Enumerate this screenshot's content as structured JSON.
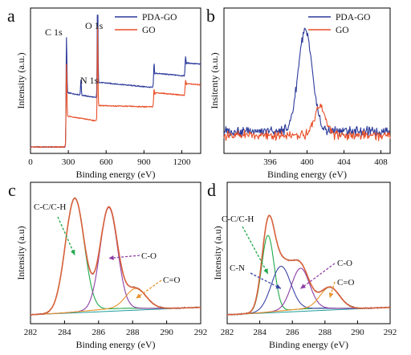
{
  "colors": {
    "pda_go": "#2b3a9a",
    "go": "#e8502a",
    "envelope": "#d9603a",
    "fit_cc": "#1fa84a",
    "fit_co": "#8e3fa6",
    "fit_cn": "#3a45a8",
    "fit_c_eq_o": "#e8922a",
    "baseline": "#1e9c9c",
    "axis": "#000000"
  },
  "chart_data": [
    {
      "panel": "a",
      "type": "line",
      "xlabel": "Binding energy (eV)",
      "ylabel": "Intensity (a.u.)",
      "xlim": [
        0,
        1350
      ],
      "xticks": [
        0,
        300,
        600,
        900,
        1200
      ],
      "legend": {
        "placement": "top-right",
        "entries": [
          "PDA-GO",
          "GO"
        ]
      },
      "peak_labels": [
        {
          "text": "C 1s",
          "x": 285
        },
        {
          "text": "N 1s",
          "x": 400
        },
        {
          "text": "O 1s",
          "x": 532
        }
      ],
      "series": [
        {
          "name": "PDA-GO",
          "color": "#2b3a9a",
          "peaks": [
            {
              "x": 285,
              "height": 0.62
            },
            {
              "x": 400,
              "height": 0.12
            },
            {
              "x": 532,
              "height": 0.95
            },
            {
              "x": 980,
              "height": 0.13
            },
            {
              "x": 1230,
              "height": 0.1
            }
          ],
          "baseline": [
            [
              0,
              0.0
            ],
            [
              280,
              0.0
            ],
            [
              290,
              0.42
            ],
            [
              530,
              0.38
            ],
            [
              540,
              0.5
            ],
            [
              970,
              0.46
            ],
            [
              990,
              0.57
            ],
            [
              1220,
              0.55
            ],
            [
              1240,
              0.65
            ],
            [
              1350,
              0.64
            ]
          ]
        },
        {
          "name": "GO",
          "color": "#e8502a",
          "peaks": [
            {
              "x": 285,
              "height": 0.52
            },
            {
              "x": 532,
              "height": 0.7
            },
            {
              "x": 980,
              "height": 0.08
            },
            {
              "x": 1230,
              "height": 0.07
            }
          ],
          "baseline": [
            [
              0,
              0.0
            ],
            [
              280,
              0.0
            ],
            [
              290,
              0.24
            ],
            [
              530,
              0.2
            ],
            [
              540,
              0.32
            ],
            [
              970,
              0.31
            ],
            [
              990,
              0.42
            ],
            [
              1220,
              0.4
            ],
            [
              1240,
              0.49
            ],
            [
              1350,
              0.48
            ]
          ]
        }
      ]
    },
    {
      "panel": "b",
      "type": "line",
      "xlabel": "Binding energy (eV)",
      "ylabel": "Insitenty (a.u.)",
      "xlim": [
        391,
        409
      ],
      "xticks": [
        396,
        400,
        404,
        408
      ],
      "legend": {
        "placement": "top-right",
        "entries": [
          "PDA-GO",
          "GO"
        ]
      },
      "series": [
        {
          "name": "PDA-GO",
          "color": "#2b3a9a",
          "peaks": [
            {
              "x": 399.8,
              "height": 0.78,
              "width": 0.9
            }
          ],
          "base": 0.12
        },
        {
          "name": "GO",
          "color": "#e8502a",
          "peaks": [
            {
              "x": 401.4,
              "height": 0.22,
              "width": 0.7
            }
          ],
          "base": 0.09
        }
      ]
    },
    {
      "panel": "c",
      "type": "line",
      "xlabel": "Binding energy (eV)",
      "ylabel": "Intensity (a.u)",
      "xlim": [
        282,
        292
      ],
      "xticks": [
        282,
        284,
        286,
        288,
        290,
        292
      ],
      "annotations": [
        {
          "text": "C-C/C-H",
          "points_to": 284.6
        },
        {
          "text": "C-O",
          "points_to": 286.6
        },
        {
          "text": "C=O",
          "points_to": 288.2
        }
      ],
      "components": [
        {
          "label": "C-C/C-H",
          "center": 284.6,
          "height": 0.92,
          "fwhm": 1.3,
          "color": "#1fa84a"
        },
        {
          "label": "C-O",
          "center": 286.6,
          "height": 0.82,
          "fwhm": 1.2,
          "color": "#8e3fa6"
        },
        {
          "label": "C=O",
          "center": 288.2,
          "height": 0.16,
          "fwhm": 1.4,
          "color": "#e8922a"
        }
      ]
    },
    {
      "panel": "d",
      "type": "line",
      "xlabel": "Binding energy (eV)",
      "ylabel": "Intensity (a.u)",
      "xlim": [
        282,
        292
      ],
      "xticks": [
        282,
        284,
        286,
        288,
        290,
        292
      ],
      "annotations": [
        {
          "text": "C-C/C-H",
          "points_to": 284.5
        },
        {
          "text": "C-N",
          "points_to": 285.3
        },
        {
          "text": "C-O",
          "points_to": 286.5
        },
        {
          "text": "C=O",
          "points_to": 288.3
        }
      ],
      "components": [
        {
          "label": "C-C/C-H",
          "center": 284.5,
          "height": 0.62,
          "fwhm": 0.9,
          "color": "#1fa84a"
        },
        {
          "label": "C-N",
          "center": 285.3,
          "height": 0.36,
          "fwhm": 1.4,
          "color": "#3a45a8"
        },
        {
          "label": "C-O",
          "center": 286.5,
          "height": 0.33,
          "fwhm": 1.3,
          "color": "#8e3fa6"
        },
        {
          "label": "C=O",
          "center": 288.3,
          "height": 0.17,
          "fwhm": 1.4,
          "color": "#e8922a"
        }
      ]
    }
  ]
}
